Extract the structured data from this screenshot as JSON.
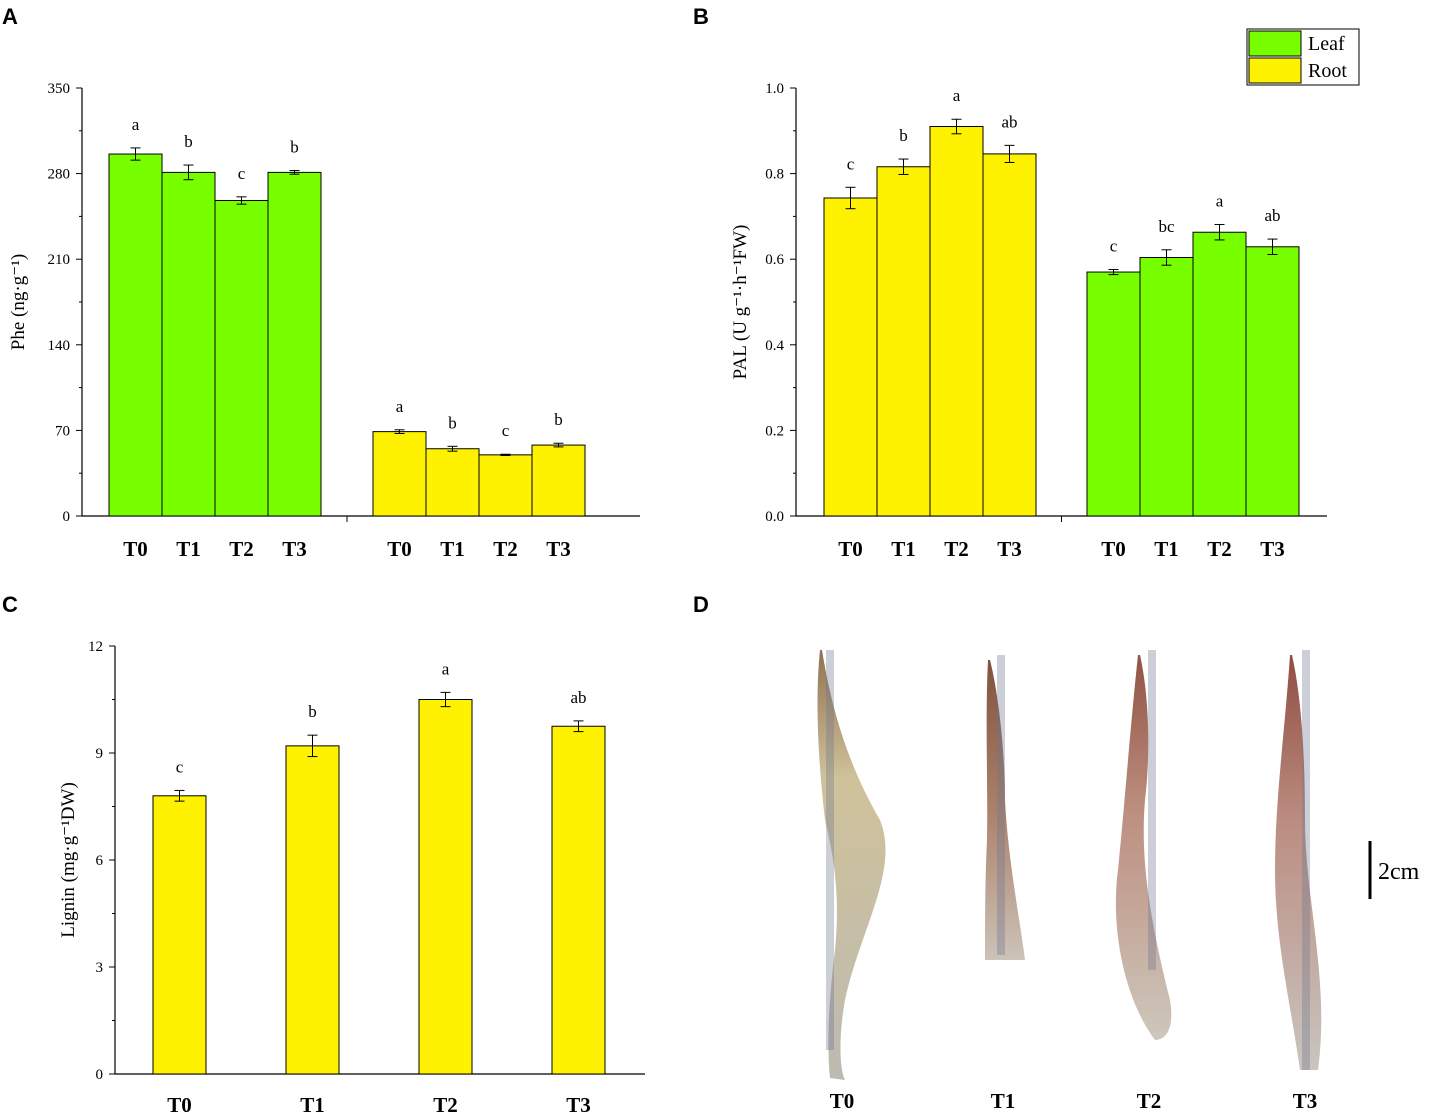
{
  "colors": {
    "leaf": "#77ff00",
    "root": "#fff200",
    "axis": "#000000"
  },
  "chart_data": [
    {
      "panel": "A",
      "type": "bar",
      "ylabel": "Phe (ng·g⁻¹)",
      "ylim": [
        0,
        350
      ],
      "yticks": [
        "0",
        "70",
        "140",
        "210",
        "280",
        "350"
      ],
      "groups": [
        {
          "name": "Leaf",
          "color": "leaf",
          "categories": [
            "T0",
            "T1",
            "T2",
            "T3"
          ],
          "values": [
            296,
            281,
            258,
            281
          ],
          "errors": [
            5,
            6,
            3,
            1.5
          ],
          "letters": [
            "a",
            "b",
            "c",
            "b"
          ]
        },
        {
          "name": "Root",
          "color": "root",
          "categories": [
            "T0",
            "T1",
            "T2",
            "T3"
          ],
          "values": [
            69,
            55,
            50,
            58
          ],
          "errors": [
            1.5,
            2,
            0.5,
            1.5
          ],
          "letters": [
            "a",
            "b",
            "c",
            "b"
          ]
        }
      ]
    },
    {
      "panel": "B",
      "type": "bar",
      "ylabel": "PAL (U g⁻¹·h⁻¹FW)",
      "ylim": [
        0,
        1.0
      ],
      "yticks": [
        "0.0",
        "0.2",
        "0.4",
        "0.6",
        "0.8",
        "1.0"
      ],
      "legend": [
        {
          "label": "Leaf",
          "color": "leaf"
        },
        {
          "label": "Root",
          "color": "root"
        }
      ],
      "groups": [
        {
          "name": "Root",
          "color": "root",
          "categories": [
            "T0",
            "T1",
            "T2",
            "T3"
          ],
          "values": [
            0.743,
            0.816,
            0.91,
            0.846
          ],
          "errors": [
            0.025,
            0.018,
            0.017,
            0.02
          ],
          "letters": [
            "c",
            "b",
            "a",
            "ab"
          ]
        },
        {
          "name": "Leaf",
          "color": "leaf",
          "categories": [
            "T0",
            "T1",
            "T2",
            "T3"
          ],
          "values": [
            0.57,
            0.604,
            0.663,
            0.629
          ],
          "errors": [
            0.006,
            0.018,
            0.018,
            0.018
          ],
          "letters": [
            "c",
            "bc",
            "a",
            "ab"
          ]
        }
      ]
    },
    {
      "panel": "C",
      "type": "bar",
      "ylabel": "Lignin (mg·g⁻¹DW)",
      "ylim": [
        0,
        12
      ],
      "yticks": [
        "0",
        "3",
        "6",
        "9",
        "12"
      ],
      "groups": [
        {
          "name": "Root",
          "color": "root",
          "categories": [
            "T0",
            "T1",
            "T2",
            "T3"
          ],
          "values": [
            7.8,
            9.2,
            10.5,
            9.75
          ],
          "errors": [
            0.15,
            0.3,
            0.2,
            0.15
          ],
          "letters": [
            "c",
            "b",
            "a",
            "ab"
          ]
        }
      ]
    }
  ],
  "photo": {
    "panel": "D",
    "labels": [
      "T0",
      "T1",
      "T2",
      "T3"
    ],
    "scale_label": "2cm"
  }
}
